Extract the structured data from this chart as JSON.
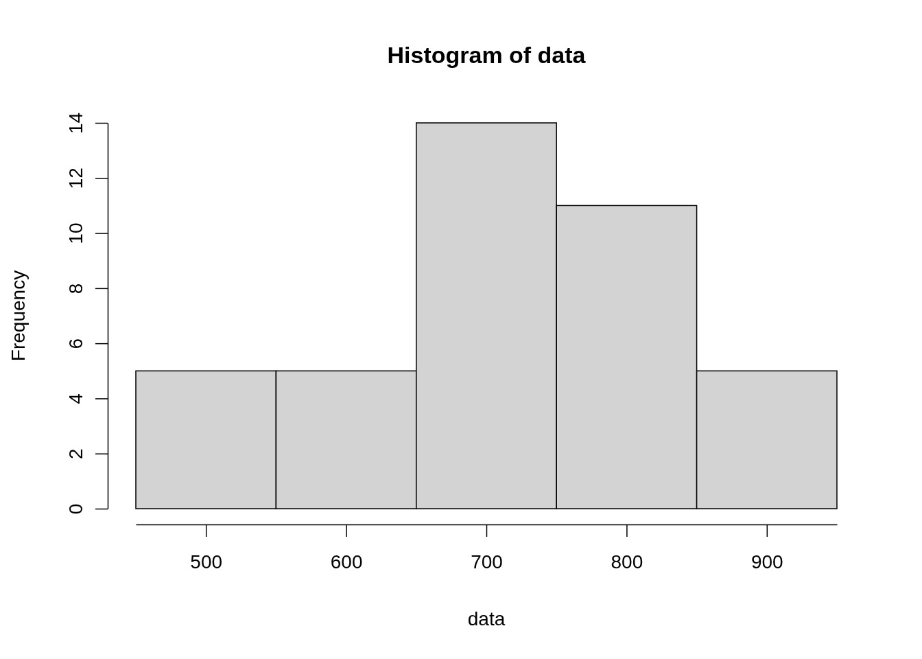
{
  "chart_data": {
    "type": "histogram",
    "title": "Histogram of data",
    "xlabel": "data",
    "ylabel": "Frequency",
    "bins": [
      450,
      550,
      650,
      750,
      850,
      950
    ],
    "values": [
      5,
      5,
      14,
      11,
      5
    ],
    "color": "#d3d3d3",
    "xlim": [
      450,
      950
    ],
    "xticks": [
      500,
      600,
      700,
      800,
      900
    ],
    "ylim": [
      0,
      14
    ],
    "yticks": [
      0,
      2,
      4,
      6,
      8,
      10,
      12,
      14
    ],
    "grid": false
  }
}
